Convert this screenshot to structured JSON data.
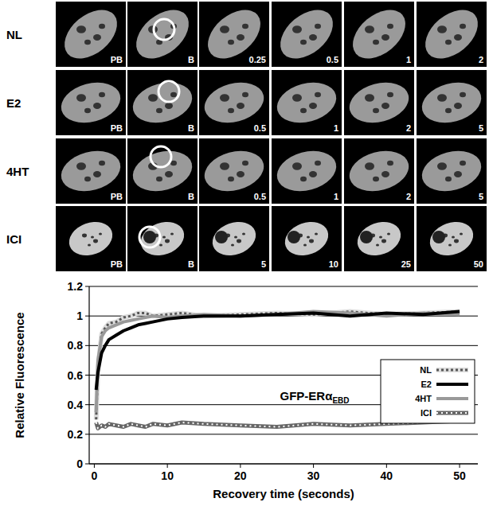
{
  "micrographs": {
    "rows": [
      {
        "label": "NL",
        "panels": [
          "PB",
          "B",
          "0.25",
          "0.5",
          "1",
          "2"
        ]
      },
      {
        "label": "E2",
        "panels": [
          "PB",
          "B",
          "0.5",
          "1",
          "2",
          "5"
        ]
      },
      {
        "label": "4HT",
        "panels": [
          "PB",
          "B",
          "0.5",
          "1",
          "2",
          "5"
        ]
      },
      {
        "label": "ICI",
        "panels": [
          "PB",
          "B",
          "5",
          "10",
          "25",
          "50"
        ]
      }
    ]
  },
  "chart_data": {
    "type": "line",
    "xlabel": "Recovery time (seconds)",
    "ylabel": "Relative Fluorescence",
    "annotation": {
      "text": "GFP-ERα",
      "subscript": "EBD"
    },
    "x": [
      0.25,
      0.5,
      1,
      1.5,
      2,
      3,
      4,
      5,
      6,
      7,
      8,
      10,
      12,
      15,
      20,
      25,
      30,
      35,
      40,
      45,
      50
    ],
    "series": [
      {
        "name": "NL",
        "color": "#555555",
        "line_style": "checkered",
        "values": [
          0.3,
          0.65,
          0.88,
          0.92,
          0.95,
          0.96,
          0.99,
          1.0,
          1.02,
          1.02,
          1.0,
          1.01,
          1.02,
          1.0,
          1.01,
          1.02,
          1.01,
          1.03,
          1.01,
          1.02,
          1.03
        ]
      },
      {
        "name": "E2",
        "color": "#000000",
        "line_style": "solid",
        "values": [
          0.5,
          0.62,
          0.75,
          0.8,
          0.84,
          0.87,
          0.9,
          0.92,
          0.94,
          0.95,
          0.96,
          0.98,
          0.99,
          1.0,
          1.0,
          1.01,
          1.02,
          1.0,
          1.02,
          1.01,
          1.03
        ]
      },
      {
        "name": "4HT",
        "color": "#999999",
        "line_style": "solid",
        "values": [
          0.35,
          0.7,
          0.86,
          0.9,
          0.92,
          0.94,
          0.96,
          0.97,
          0.98,
          0.99,
          1.0,
          0.99,
          1.0,
          1.01,
          1.0,
          1.01,
          1.03,
          1.02,
          1.0,
          1.02,
          1.01
        ]
      },
      {
        "name": "ICI",
        "color": "#666666",
        "line_style": "hatched",
        "values": [
          0.28,
          0.24,
          0.26,
          0.25,
          0.27,
          0.26,
          0.25,
          0.27,
          0.26,
          0.25,
          0.27,
          0.26,
          0.28,
          0.27,
          0.26,
          0.25,
          0.27,
          0.26,
          0.27,
          0.28,
          0.29
        ]
      }
    ],
    "xlim": [
      -0.7,
      52.5
    ],
    "ylim": [
      0,
      1.2
    ],
    "xticks": [
      0,
      10,
      20,
      30,
      40,
      50
    ],
    "yticks": [
      0,
      0.2,
      0.4,
      0.6,
      0.8,
      1,
      1.2
    ],
    "grid": true,
    "legend": "right"
  }
}
